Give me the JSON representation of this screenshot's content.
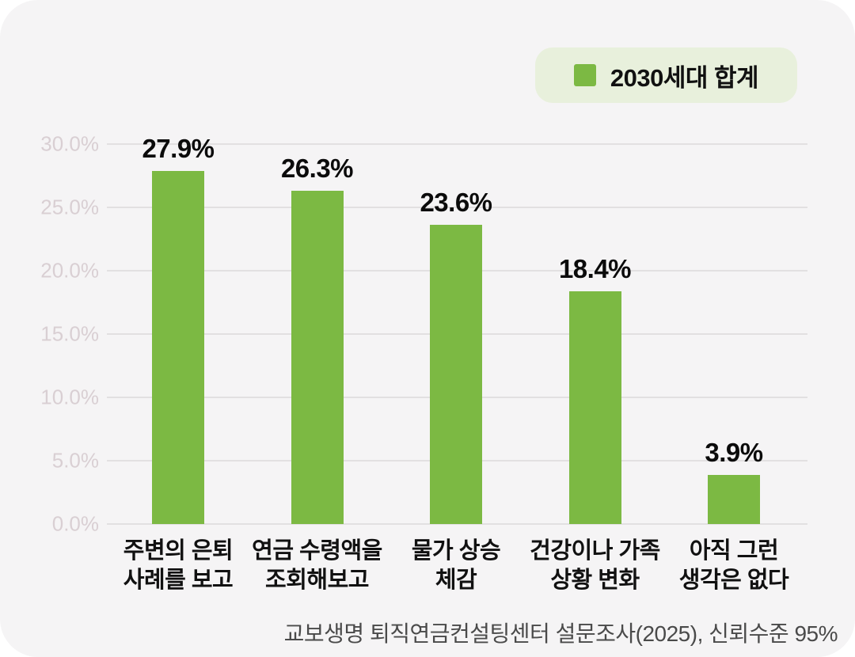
{
  "legend": {
    "label": "2030세대 합계"
  },
  "footer": {
    "source": "교보생명 퇴직연금컨설팅센터 설문조사(2025), 신뢰수준 95%"
  },
  "colors": {
    "bar": "#7cb943",
    "legend_bg": "#e8f0dc",
    "card_bg": "#f5f4f5",
    "grid": "#e2e0e1",
    "ytick_text": "#d9cfd3",
    "value_label_text": "#0b0b0b",
    "footer_text": "#4a4a4a"
  },
  "chart_data": {
    "type": "bar",
    "title": "",
    "legend_entries": [
      "2030세대 합계"
    ],
    "legend_position": "top-right",
    "categories": [
      "주변의 은퇴 사례를 보고",
      "연금 수령액을 조회해보고",
      "물가 상승 체감",
      "건강이나 가족 상황 변화",
      "아직 그런 생각은 없다"
    ],
    "category_lines": [
      [
        "주변의 은퇴",
        "사례를 보고"
      ],
      [
        "연금 수령액을",
        "조회해보고"
      ],
      [
        "물가 상승",
        "체감"
      ],
      [
        "건강이나 가족",
        "상황 변화"
      ],
      [
        "아직 그런",
        "생각은 없다"
      ]
    ],
    "values": [
      27.9,
      26.3,
      23.6,
      18.4,
      3.9
    ],
    "value_labels": [
      "27.9%",
      "26.3%",
      "23.6%",
      "18.4%",
      "3.9%"
    ],
    "xlabel": "",
    "ylabel": "",
    "ylim": [
      0,
      30
    ],
    "ytick_values": [
      30,
      25,
      20,
      15,
      10,
      5,
      0
    ],
    "ytick_labels": [
      "30.0%",
      "25.0%",
      "20.0%",
      "15.0%",
      "10.0%",
      "5.0%",
      "0.0%"
    ],
    "grid": true,
    "annotation_source": "교보생명 퇴직연금컨설팅센터 설문조사(2025), 신뢰수준 95%"
  }
}
